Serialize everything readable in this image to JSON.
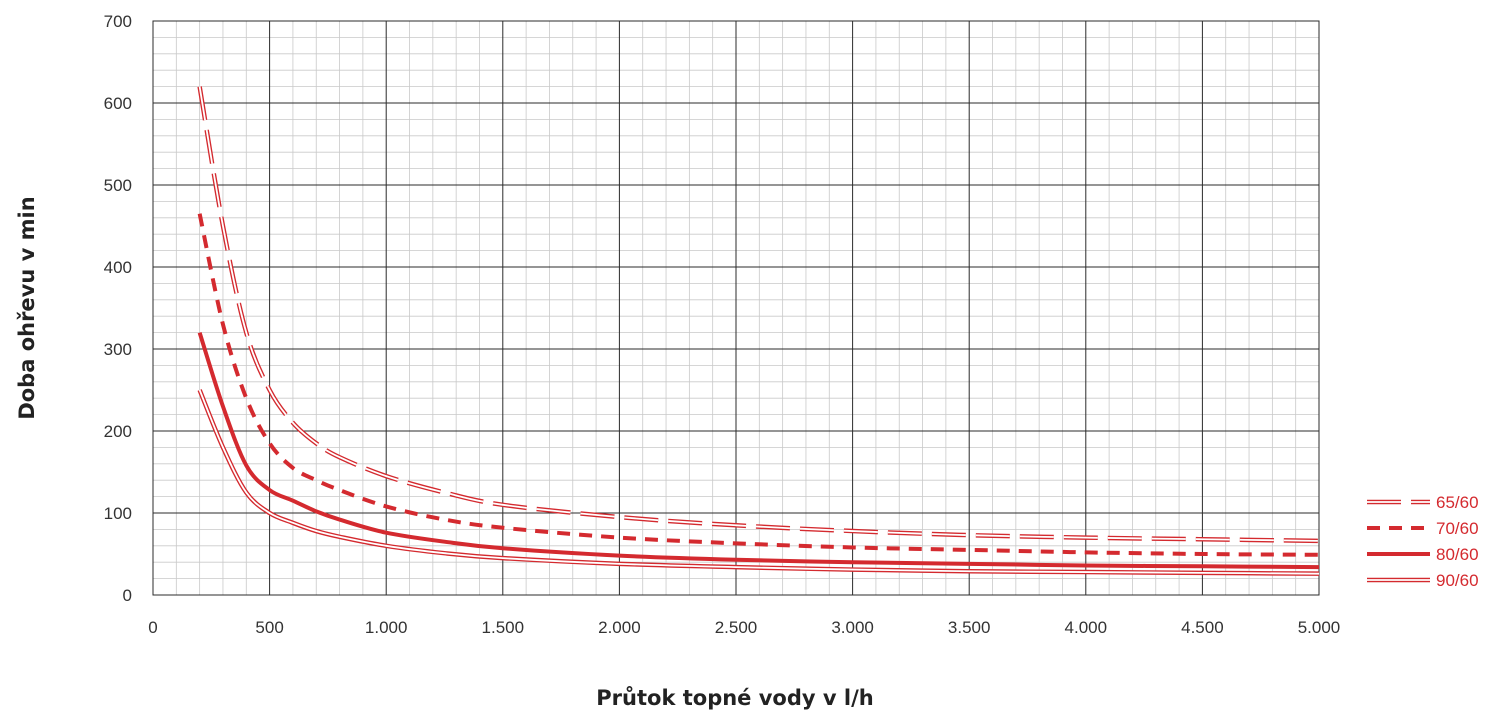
{
  "chart_data": {
    "type": "line",
    "title": "",
    "xlabel": "Průtok topné vody v l/h",
    "ylabel": "Doba ohřevu v min",
    "xlim": [
      0,
      5000
    ],
    "ylim": [
      0,
      700
    ],
    "x_ticks": [
      0,
      500,
      1000,
      1500,
      2000,
      2500,
      3000,
      3500,
      4000,
      4500,
      5000
    ],
    "x_tick_labels": [
      "0",
      "500",
      "1.000",
      "1.500",
      "2.000",
      "2.500",
      "3.000",
      "3.500",
      "4.000",
      "4.500",
      "5.000"
    ],
    "y_ticks": [
      0,
      100,
      200,
      300,
      400,
      500,
      600,
      700
    ],
    "y_tick_labels": [
      "0",
      "100",
      "200",
      "300",
      "400",
      "500",
      "600",
      "700"
    ],
    "grid": true,
    "legend_position": "right",
    "series_color": "#d42a2f",
    "series": [
      {
        "name": "65/60",
        "style": "double-dashed",
        "x": [
          200,
          300,
          400,
          500,
          600,
          700,
          800,
          1000,
          1250,
          1500,
          2000,
          2500,
          3000,
          3500,
          4000,
          4500,
          5000
        ],
        "y": [
          620,
          450,
          320,
          250,
          210,
          185,
          168,
          145,
          125,
          110,
          95,
          85,
          78,
          73,
          70,
          68,
          66
        ]
      },
      {
        "name": "70/60",
        "style": "dashed",
        "x": [
          200,
          300,
          400,
          500,
          600,
          700,
          800,
          1000,
          1250,
          1500,
          2000,
          2500,
          3000,
          3500,
          4000,
          4500,
          5000
        ],
        "y": [
          465,
          330,
          240,
          185,
          155,
          140,
          128,
          108,
          92,
          82,
          70,
          63,
          58,
          55,
          52,
          50,
          49
        ]
      },
      {
        "name": "80/60",
        "style": "solid",
        "x": [
          200,
          300,
          400,
          500,
          600,
          700,
          800,
          1000,
          1250,
          1500,
          2000,
          2500,
          3000,
          3500,
          4000,
          4500,
          5000
        ],
        "y": [
          320,
          230,
          158,
          128,
          115,
          102,
          92,
          76,
          65,
          57,
          48,
          43,
          40,
          38,
          36,
          35,
          34
        ]
      },
      {
        "name": "90/60",
        "style": "double",
        "x": [
          200,
          300,
          400,
          500,
          600,
          700,
          800,
          1000,
          1250,
          1500,
          2000,
          2500,
          3000,
          3500,
          4000,
          4500,
          5000
        ],
        "y": [
          250,
          180,
          125,
          100,
          88,
          78,
          71,
          60,
          51,
          45,
          38,
          34,
          31,
          29,
          28,
          27,
          26
        ]
      }
    ]
  }
}
